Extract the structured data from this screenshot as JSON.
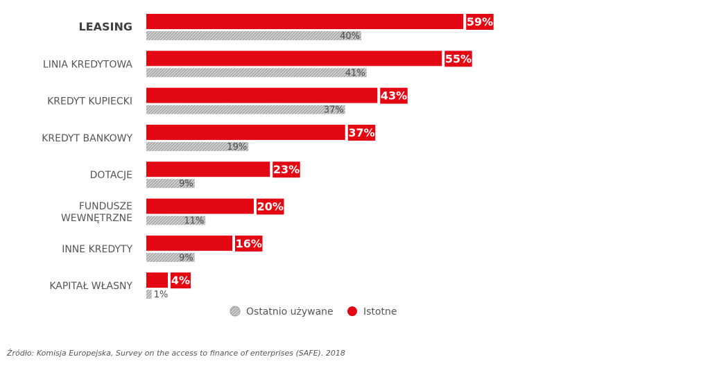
{
  "chart_data": {
    "type": "bar",
    "orientation": "horizontal",
    "categories": [
      "LEASING",
      "LINIA KREDYTOWA",
      "KREDYT KUPIECKI",
      "KREDYT BANKOWY",
      "DOTACJE",
      "FUNDUSZE WEWNĘTRZNE",
      "INNE KREDYTY",
      "KAPITAŁ WŁASNY"
    ],
    "highlighted_category": "LEASING",
    "series": [
      {
        "name": "Istotne",
        "values": [
          59,
          55,
          43,
          37,
          23,
          20,
          16,
          4
        ],
        "labels": [
          "59%",
          "55%",
          "43%",
          "37%",
          "23%",
          "20%",
          "16%",
          "4%"
        ],
        "color": "#e30613"
      },
      {
        "name": "Ostatnio używane",
        "values": [
          40,
          41,
          37,
          19,
          9,
          11,
          9,
          1
        ],
        "labels": [
          "40%",
          "41%",
          "37%",
          "19%",
          "9%",
          "11%",
          "9%",
          "1%"
        ],
        "color": "#bfbfbf",
        "pattern": "hatched"
      }
    ],
    "legend_position": "bottom",
    "grid": false
  },
  "legend": {
    "items": [
      "Ostatnio używane",
      "Istotne"
    ]
  },
  "source": "Źródło: Komisja Europejska, Survey on the access to finance of enterprises (SAFE). 2018"
}
